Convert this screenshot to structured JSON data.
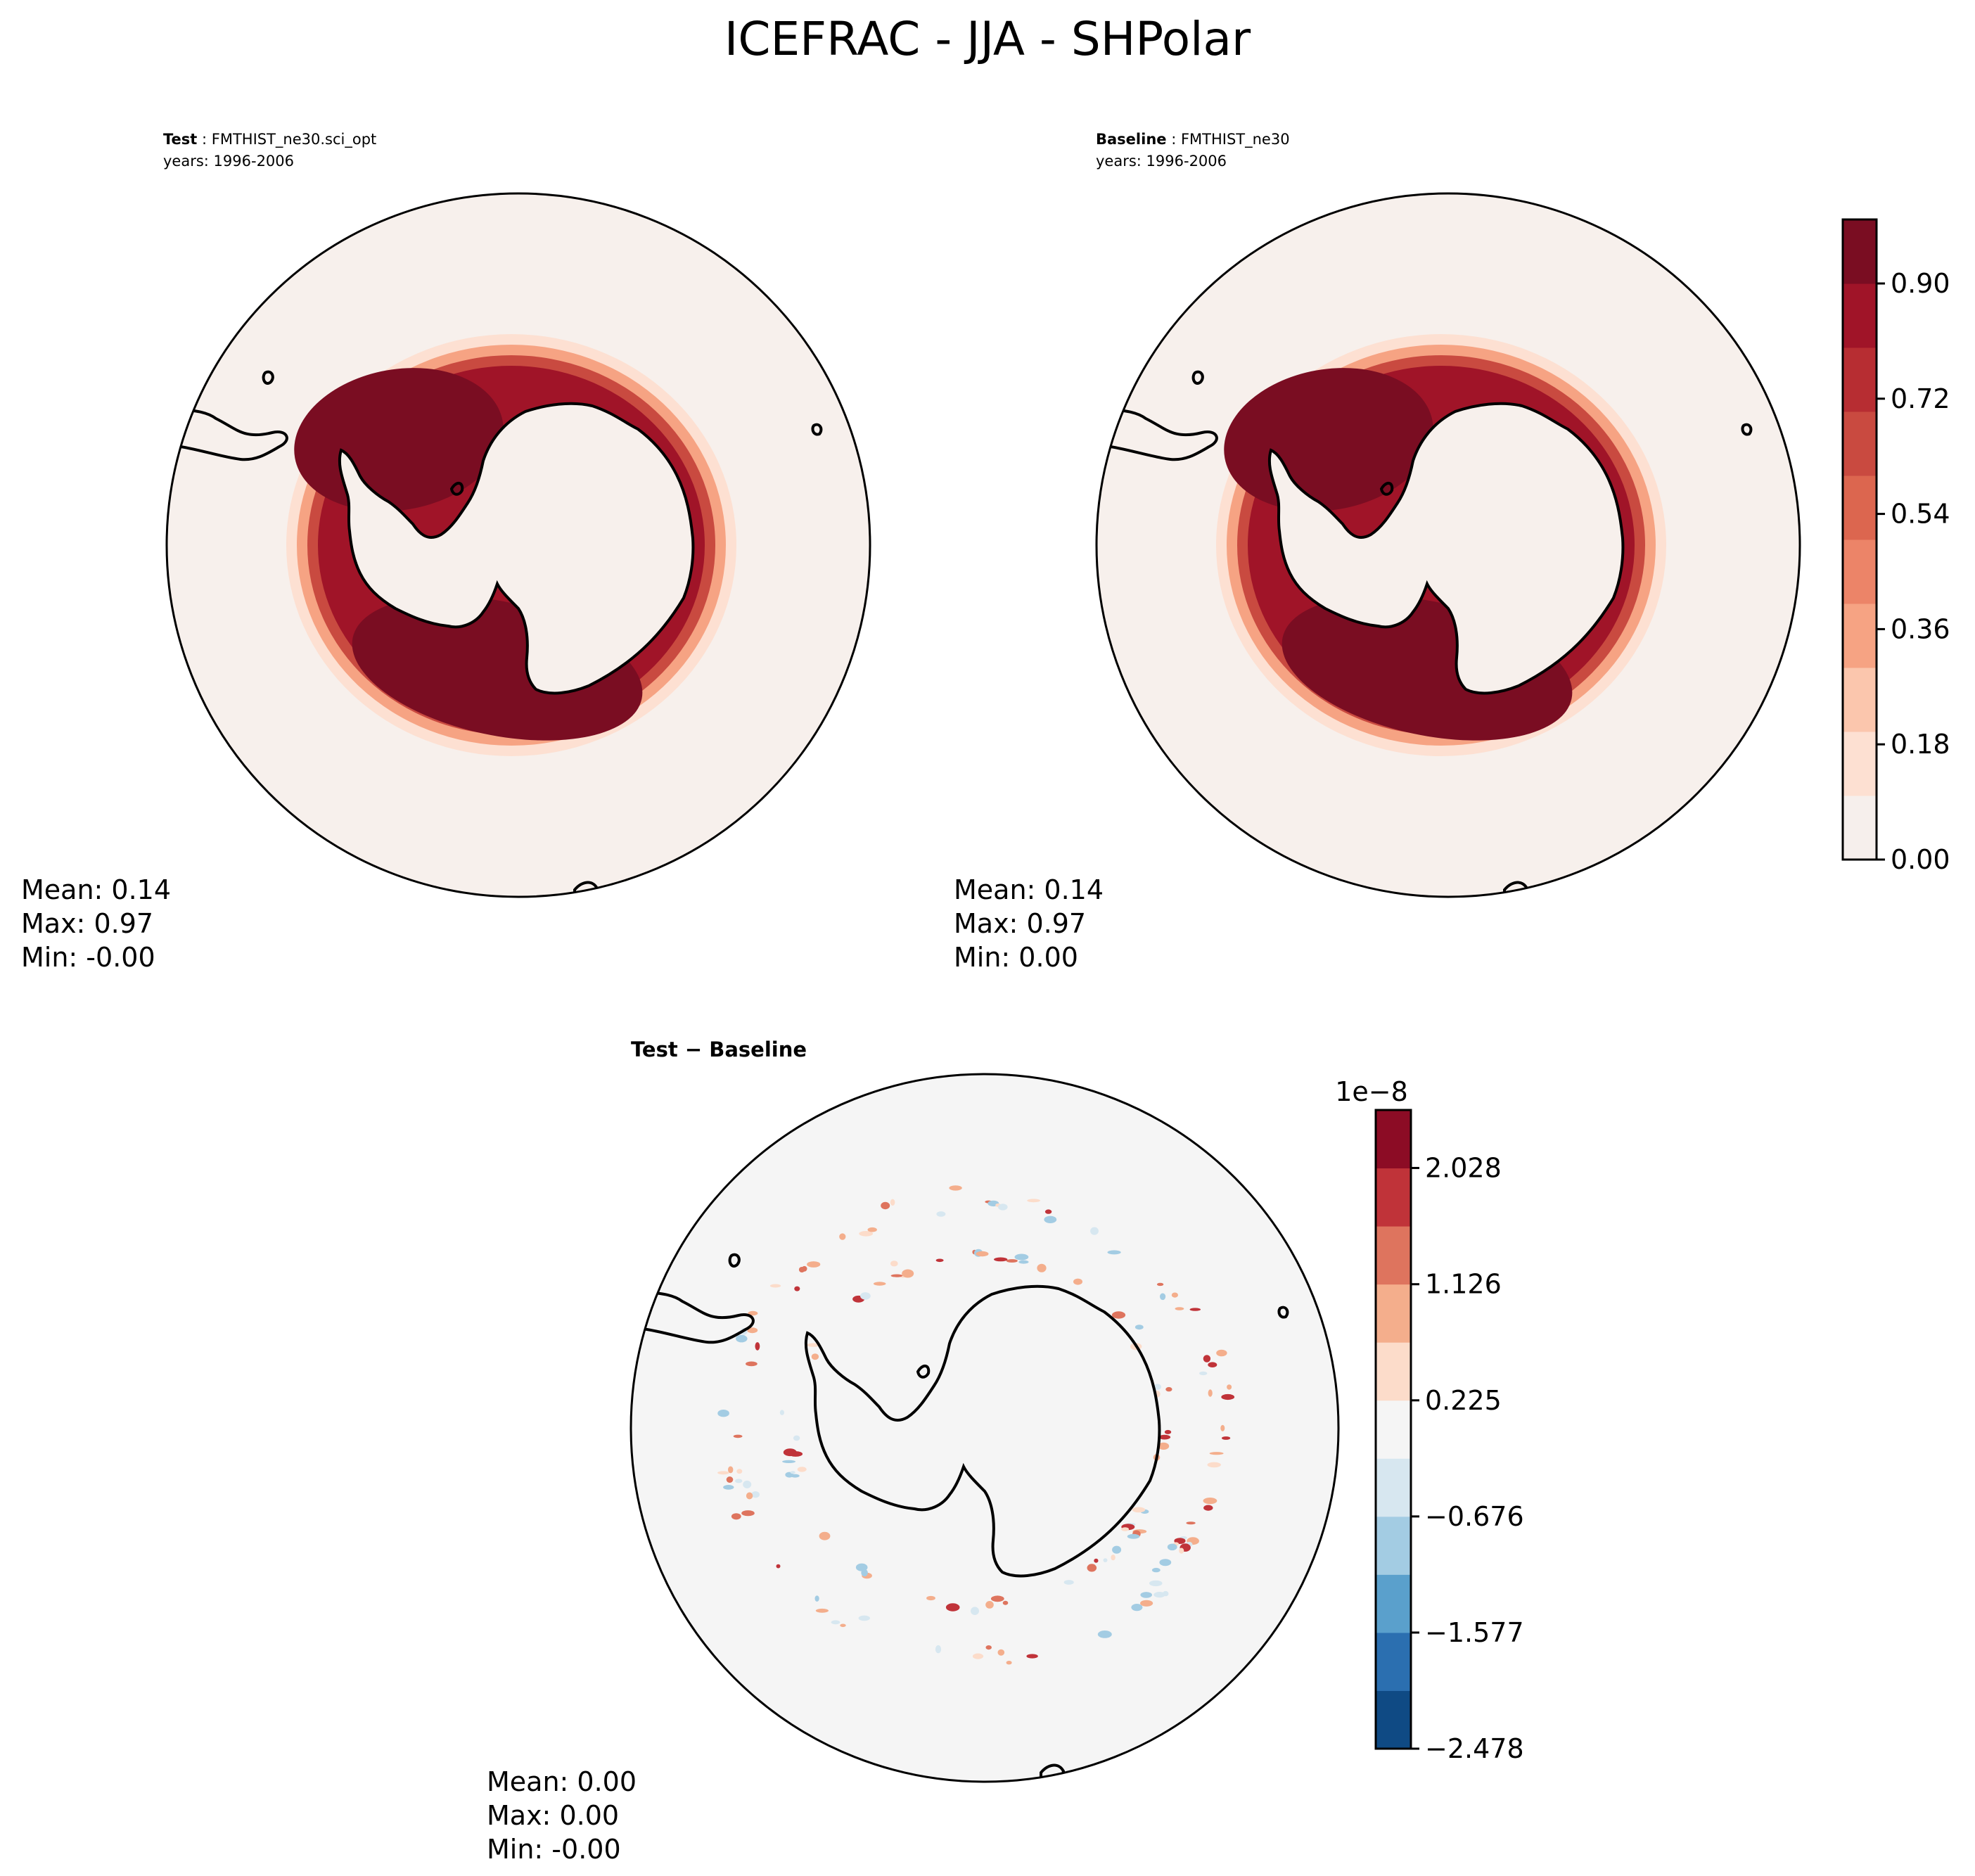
{
  "title": "ICEFRAC - JJA - SHPolar",
  "chart_data": [
    {
      "type": "heatmap",
      "panel": "test",
      "label_bold": "Test",
      "label_rest": " : FMTHIST_ne30.sci_opt",
      "years": "years: 1996-2006",
      "projection": "south polar stereographic",
      "stats": {
        "mean": "Mean:  0.14",
        "max": "Max:  0.97",
        "min": "Min: -0.00"
      }
    },
    {
      "type": "heatmap",
      "panel": "baseline",
      "label_bold": "Baseline",
      "label_rest": " : FMTHIST_ne30",
      "years": "years: 1996-2006",
      "projection": "south polar stereographic",
      "stats": {
        "mean": "Mean:  0.14",
        "max": "Max:  0.97",
        "min": "Min:  0.00"
      },
      "colorbar": {
        "range": [
          0,
          1
        ],
        "ticks": [
          0.0,
          0.18,
          0.36,
          0.54,
          0.72,
          0.9
        ],
        "tick_labels": [
          "0.00",
          "0.18",
          "0.36",
          "0.54",
          "0.72",
          "0.90"
        ],
        "colors": [
          "#f6efec",
          "#fde0d2",
          "#fbc6ad",
          "#f6a383",
          "#ec8468",
          "#dc664f",
          "#c94a40",
          "#b72d32",
          "#a01428",
          "#7a0d22"
        ]
      }
    },
    {
      "type": "heatmap",
      "panel": "difference",
      "label": "Test − Baseline",
      "projection": "south polar stereographic",
      "stats": {
        "mean": "Mean:  0.00",
        "max": "Max:  0.00",
        "min": "Min: -0.00"
      },
      "colorbar": {
        "range": [
          -2.478,
          2.478
        ],
        "multiplier": "1e−8",
        "ticks": [
          -2.478,
          -1.577,
          -0.676,
          0.225,
          1.126,
          2.028
        ],
        "tick_labels": [
          "−2.478",
          "−1.577",
          "−0.676",
          "0.225",
          "1.126",
          "2.028"
        ],
        "colors": [
          "#0f4a84",
          "#2b6fb0",
          "#5aa0cc",
          "#a3cce3",
          "#d7e7f0",
          "#f5f5f5",
          "#fcdcca",
          "#f4ae8c",
          "#de745e",
          "#c03339",
          "#8c0c25"
        ]
      }
    }
  ]
}
